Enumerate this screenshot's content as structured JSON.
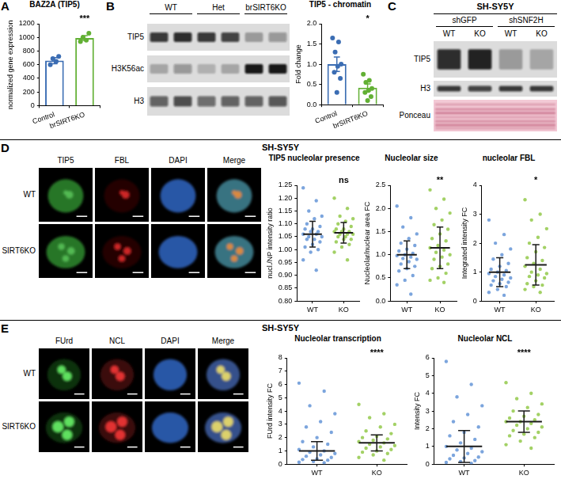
{
  "panel_letters": [
    "A",
    "B",
    "C",
    "D",
    "E"
  ],
  "chart_data": [
    {
      "type": "bar",
      "title": "BAZ2A (TIP5)",
      "y_label": "normalized gene expression",
      "categories": [
        "Control",
        "brSIRT6KO"
      ],
      "values": [
        660,
        990
      ],
      "errors": [
        45,
        35
      ],
      "points": [
        [
          600,
          650,
          690,
          720
        ],
        [
          940,
          960,
          1000,
          1060
        ]
      ],
      "colors": [
        "#3b6db3",
        "#62b034"
      ],
      "ylim": [
        0,
        1200
      ],
      "yticks": [
        0,
        200,
        400,
        600,
        800,
        1000,
        1200
      ],
      "annotation": "***",
      "grid": false
    },
    {
      "type": "bar",
      "title": "TIP5 - chromatin",
      "y_label": "Fold change",
      "categories": [
        "Control",
        "brSIRT6KO"
      ],
      "values": [
        1.0,
        0.42
      ],
      "errors": [
        0.18,
        0.09
      ],
      "points": [
        [
          1.65,
          1.55,
          1.3,
          1.0,
          0.95,
          0.8,
          0.65,
          0.3
        ],
        [
          0.75,
          0.6,
          0.55,
          0.4,
          0.35,
          0.3,
          0.2,
          0.1
        ]
      ],
      "colors": [
        "#3b6db3",
        "#62b034"
      ],
      "ylim": [
        0,
        2
      ],
      "yticks": [
        {
          "value": 0,
          "label": "0.0"
        },
        0.5,
        {
          "value": 1,
          "label": "1.0"
        },
        1.5,
        {
          "value": 2,
          "label": "2.0"
        }
      ],
      "annotation": "*",
      "grid": false
    },
    {
      "type": "dot",
      "title": "TIP5 nucleolar presence",
      "y_label": "nucl./NP intensity ratio",
      "categories": [
        "WT",
        "KO"
      ],
      "values": [
        1.06,
        1.065
      ],
      "errors": [
        0.05,
        0.04
      ],
      "points": [
        [
          1.24,
          1.19,
          1.15,
          1.13,
          1.12,
          1.1,
          1.09,
          1.08,
          1.08,
          1.07,
          1.07,
          1.06,
          1.06,
          1.05,
          1.05,
          1.04,
          1.04,
          1.03,
          1.02,
          1.01,
          1.0,
          0.99,
          0.96,
          0.92
        ],
        [
          1.2,
          1.16,
          1.13,
          1.12,
          1.11,
          1.1,
          1.09,
          1.08,
          1.08,
          1.07,
          1.07,
          1.07,
          1.06,
          1.06,
          1.06,
          1.05,
          1.05,
          1.04,
          1.04,
          1.03,
          1.02,
          1.01,
          0.99,
          0.96
        ]
      ],
      "colors": [
        "#5b8fd4",
        "#8cc63f"
      ],
      "ylim": [
        0.8,
        1.25
      ],
      "yticks": [
        {
          "value": 0.8,
          "label": "0.80"
        },
        0.85,
        {
          "value": 0.9,
          "label": "0.90"
        },
        0.95,
        {
          "value": 1,
          "label": "1.00"
        },
        1.05,
        {
          "value": 1.1,
          "label": "1.10"
        },
        1.15,
        {
          "value": 1.2,
          "label": "1.20"
        },
        1.25
      ],
      "annotation": "ns",
      "grid": false
    },
    {
      "type": "dot",
      "title": "Nucleolar size",
      "y_label": "Nucleolar/nuclear area FC",
      "categories": [
        "WT",
        "KO"
      ],
      "values": [
        1.0,
        1.15
      ],
      "errors": [
        0.3,
        0.45
      ],
      "points": [
        [
          2.05,
          1.8,
          1.6,
          1.45,
          1.35,
          1.25,
          1.2,
          1.12,
          1.08,
          1.03,
          1.0,
          0.98,
          0.95,
          0.92,
          0.9,
          0.85,
          0.8,
          0.75,
          0.7,
          0.65,
          0.55,
          0.45,
          0.35,
          0.15
        ],
        [
          2.4,
          2.2,
          2.0,
          1.9,
          1.75,
          1.65,
          1.55,
          1.45,
          1.35,
          1.3,
          1.2,
          1.15,
          1.1,
          1.05,
          1.0,
          0.95,
          0.9,
          0.8,
          0.75,
          0.7,
          0.6,
          0.5,
          0.45,
          0.4
        ]
      ],
      "colors": [
        "#5b8fd4",
        "#8cc63f"
      ],
      "ylim": [
        0,
        2.5
      ],
      "yticks": [
        {
          "value": 0,
          "label": "0.0"
        },
        0.5,
        {
          "value": 1,
          "label": "1.0"
        },
        1.5,
        {
          "value": 2,
          "label": "2.0"
        },
        2.5
      ],
      "annotation": "**",
      "grid": false
    },
    {
      "type": "dot",
      "title": "nucleolar FBL",
      "y_label": "Integrated intensity FC",
      "categories": [
        "WT",
        "KO"
      ],
      "values": [
        1.0,
        1.25
      ],
      "errors": [
        0.5,
        0.7
      ],
      "points": [
        [
          2.8,
          2.3,
          2.0,
          1.8,
          1.6,
          1.45,
          1.3,
          1.2,
          1.1,
          1.05,
          1.0,
          0.95,
          0.9,
          0.85,
          0.8,
          0.75,
          0.7,
          0.65,
          0.6,
          0.55,
          0.5,
          0.4,
          0.3,
          0.2
        ],
        [
          3.5,
          3.0,
          2.8,
          2.5,
          2.2,
          2.0,
          1.85,
          1.7,
          1.5,
          1.4,
          1.3,
          1.2,
          1.1,
          1.0,
          0.95,
          0.9,
          0.85,
          0.8,
          0.7,
          0.6,
          0.55,
          0.5,
          0.4,
          0.3
        ]
      ],
      "colors": [
        "#5b8fd4",
        "#8cc63f"
      ],
      "ylim": [
        0,
        4
      ],
      "yticks": [
        0,
        1,
        2,
        3,
        4
      ],
      "annotation": "*",
      "grid": false
    },
    {
      "type": "dot",
      "title": "Nucleolar transcription",
      "y_label": "FUrd intensity FC",
      "categories": [
        "WT",
        "KO"
      ],
      "values": [
        1.0,
        1.6
      ],
      "errors": [
        0.7,
        0.6
      ],
      "points": [
        [
          6.1,
          5.5,
          4.4,
          3.8,
          3.2,
          2.8,
          2.4,
          2.0,
          1.7,
          1.5,
          1.3,
          1.1,
          1.0,
          0.9,
          0.8,
          0.7,
          0.6,
          0.5,
          0.4,
          0.35,
          0.3,
          0.2,
          0.15,
          0.1
        ],
        [
          4.5,
          3.8,
          3.5,
          3.0,
          2.8,
          2.5,
          2.3,
          2.1,
          2.0,
          1.9,
          1.8,
          1.7,
          1.6,
          1.5,
          1.4,
          1.3,
          1.2,
          1.1,
          1.0,
          0.9,
          0.8,
          0.7,
          0.5,
          0.3
        ]
      ],
      "colors": [
        "#5b8fd4",
        "#8cc63f"
      ],
      "ylim": [
        0,
        8
      ],
      "yticks": [
        0,
        1,
        2,
        3,
        4,
        5,
        6,
        7,
        8
      ],
      "annotation": "****",
      "grid": false
    },
    {
      "type": "dot",
      "title": "Nucleolar NCL",
      "y_label": "Intensity FC",
      "categories": [
        "WT",
        "KO"
      ],
      "values": [
        1.0,
        2.4
      ],
      "errors": [
        0.9,
        0.6
      ],
      "points": [
        [
          5.8,
          4.5,
          3.8,
          3.3,
          2.8,
          2.4,
          2.1,
          1.8,
          1.6,
          1.4,
          1.2,
          1.0,
          0.9,
          0.8,
          0.7,
          0.6,
          0.5,
          0.4,
          0.35,
          0.3,
          0.2,
          0.15,
          0.1,
          0.05
        ],
        [
          4.6,
          4.0,
          3.7,
          3.4,
          3.2,
          3.0,
          2.8,
          2.7,
          2.6,
          2.5,
          2.4,
          2.4,
          2.3,
          2.2,
          2.1,
          2.0,
          1.9,
          1.8,
          1.7,
          1.6,
          1.5,
          1.3,
          1.1,
          0.9
        ]
      ],
      "colors": [
        "#5b8fd4",
        "#8cc63f"
      ],
      "ylim": [
        0,
        6
      ],
      "yticks": [
        0,
        1,
        2,
        3,
        4,
        5,
        6
      ],
      "annotation": "****",
      "grid": false
    }
  ],
  "blot_B": {
    "groups": [
      "WT",
      "Het",
      "brSIRT6KO"
    ],
    "rows": [
      "TIP5",
      "H3K56ac",
      "H3"
    ]
  },
  "blot_C": {
    "title": "SH-SY5Y",
    "groups": [
      "shGFP",
      "shSNF2H"
    ],
    "lanes": [
      "WT",
      "KO",
      "WT",
      "KO"
    ],
    "rows": [
      "TIP5",
      "H3",
      "Ponceau"
    ]
  },
  "images_D": {
    "title": "SH-SY5Y",
    "channels": [
      "TIP5",
      "FBL",
      "DAPI",
      "Merge"
    ],
    "rows": [
      "WT",
      "SIRT6KO"
    ]
  },
  "images_E": {
    "title": "SH-SY5Y",
    "channels": [
      "FUrd",
      "NCL",
      "DAPI",
      "Merge"
    ],
    "rows": [
      "WT",
      "SIRT6KO"
    ]
  }
}
